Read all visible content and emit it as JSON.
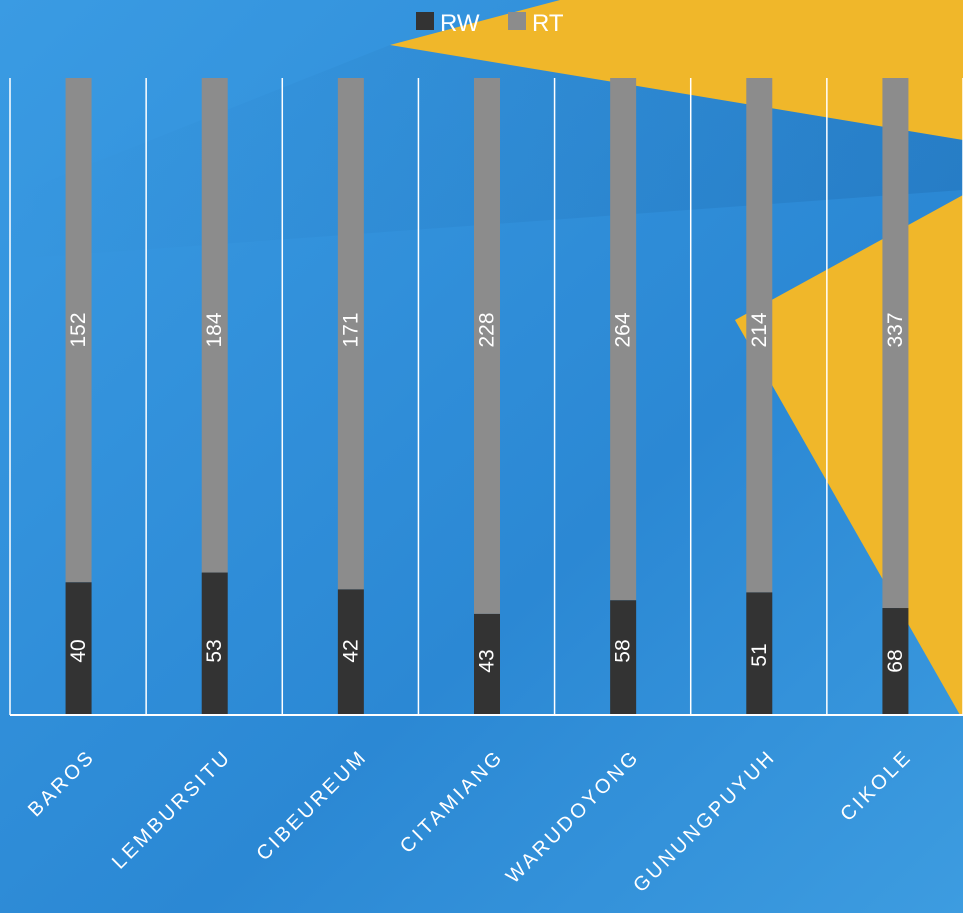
{
  "chart_data": {
    "type": "bar",
    "stacked": "percent",
    "categories": [
      "BAROS",
      "LEMBURSITU",
      "CIBEUREUM",
      "CITAMIANG",
      "WARUDOYONG",
      "GUNUNGPUYUH",
      "CIKOLE"
    ],
    "series": [
      {
        "name": "RW",
        "color": "#333333",
        "values": [
          40,
          53,
          42,
          43,
          58,
          51,
          68
        ]
      },
      {
        "name": "RT",
        "color": "#8c8c8c",
        "values": [
          152,
          184,
          171,
          228,
          264,
          214,
          337
        ]
      }
    ],
    "legend_position": "top-center",
    "grid": true,
    "data_labels": "inside, rotated vertical"
  },
  "colors": {
    "background_blue": "#2b8ad6",
    "accent_yellow": "#f0b72a",
    "grid_line": "#ffffff"
  }
}
